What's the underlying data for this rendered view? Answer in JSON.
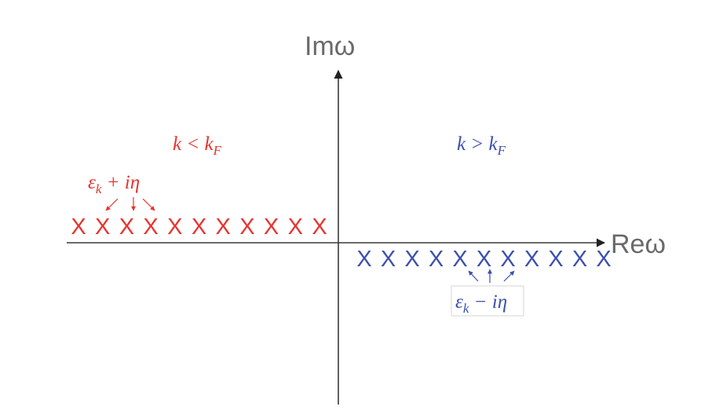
{
  "axes": {
    "x_label": "Reω",
    "y_label": "Imω",
    "color": "#3a3a3a"
  },
  "regions": {
    "left": {
      "label": "k < k_F",
      "color": "#e8332e",
      "pole_label": "ε_k + iη",
      "pole_count": 11,
      "pole_glyph": "X"
    },
    "right": {
      "label": "k > k_F",
      "color": "#3b4fb0",
      "pole_label": "ε_k − iη",
      "pole_count": 11,
      "pole_glyph": "X"
    }
  }
}
